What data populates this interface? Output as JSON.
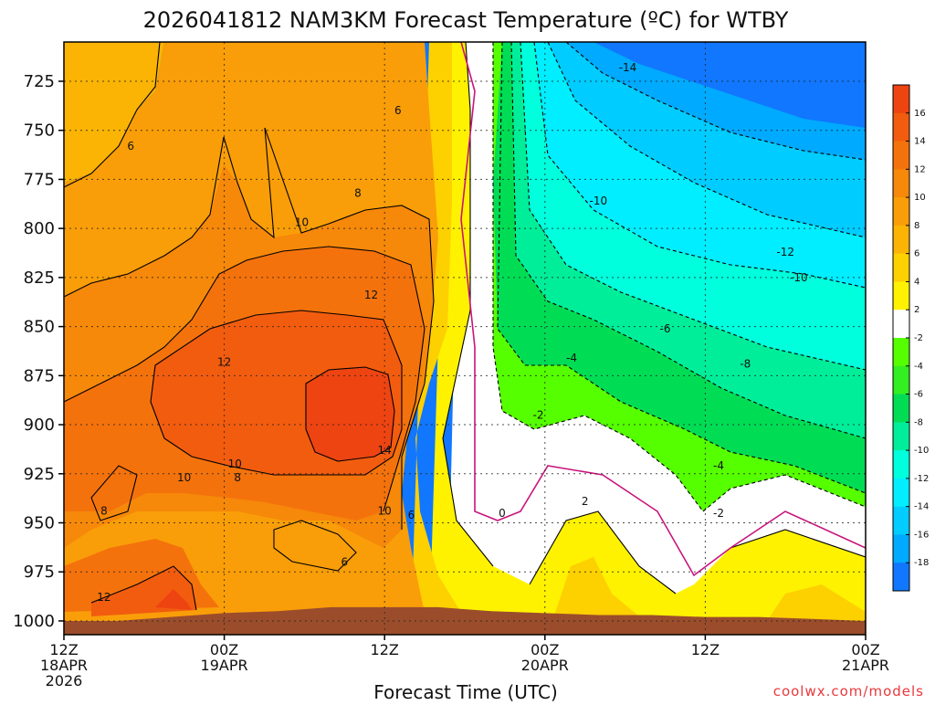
{
  "chart_data": {
    "type": "heatmap",
    "title": "2026041812 NAM3KM Forecast Temperature (ºC) for WTBY",
    "xlabel": "Forecast Time (UTC)",
    "ylabel": "",
    "credit": "coolwx.com/models",
    "x_ticks": [
      {
        "line1": "12Z",
        "line2": "18APR",
        "line3": "2026",
        "hours": 0
      },
      {
        "line1": "00Z",
        "line2": "19APR",
        "line3": "",
        "hours": 12
      },
      {
        "line1": "12Z",
        "line2": "",
        "line3": "",
        "hours": 24
      },
      {
        "line1": "00Z",
        "line2": "20APR",
        "line3": "",
        "hours": 36
      },
      {
        "line1": "12Z",
        "line2": "",
        "line3": "",
        "hours": 48
      },
      {
        "line1": "00Z",
        "line2": "21APR",
        "line3": "",
        "hours": 60
      }
    ],
    "xlim": [
      0,
      60
    ],
    "y_ticks": [
      725,
      750,
      775,
      800,
      825,
      850,
      875,
      900,
      925,
      950,
      975,
      1000
    ],
    "ylim": [
      705,
      1007
    ],
    "colorbar": {
      "labels": [
        "16",
        "14",
        "12",
        "10",
        "8",
        "6",
        "4",
        "2",
        "-2",
        "-4",
        "-6",
        "-8",
        "-10",
        "-12",
        "-14",
        "-16",
        "-18"
      ],
      "colors": [
        "#ee4411",
        "#f25c0f",
        "#f4720c",
        "#f6880a",
        "#f99e08",
        "#fbb404",
        "#fdd000",
        "#fff200",
        "#ffffff",
        "#55ff00",
        "#33ee22",
        "#00dd55",
        "#00ee99",
        "#00ffdd",
        "#00eeff",
        "#00ccff",
        "#00aaff",
        "#1177ff"
      ]
    },
    "contour_labels": [
      {
        "text": "-14",
        "hours": 42.2,
        "hpa": 718
      },
      {
        "text": "6",
        "hours": 5.0,
        "hpa": 758
      },
      {
        "text": "6",
        "hours": 25.0,
        "hpa": 740
      },
      {
        "text": "8",
        "hours": 22.0,
        "hpa": 782
      },
      {
        "text": "10",
        "hours": 17.8,
        "hpa": 797
      },
      {
        "text": "-10",
        "hours": 40.0,
        "hpa": 786
      },
      {
        "text": "-12",
        "hours": 54.0,
        "hpa": 812
      },
      {
        "text": "-10",
        "hours": 55.0,
        "hpa": 825
      },
      {
        "text": "12",
        "hours": 23.0,
        "hpa": 834
      },
      {
        "text": "-6",
        "hours": 45.0,
        "hpa": 851
      },
      {
        "text": "-4",
        "hours": 38.0,
        "hpa": 866
      },
      {
        "text": "-8",
        "hours": 51.0,
        "hpa": 869
      },
      {
        "text": "12",
        "hours": 12.0,
        "hpa": 868
      },
      {
        "text": "-2",
        "hours": 35.5,
        "hpa": 895
      },
      {
        "text": "14",
        "hours": 24.0,
        "hpa": 913
      },
      {
        "text": "10",
        "hours": 12.8,
        "hpa": 920
      },
      {
        "text": "8",
        "hours": 13.0,
        "hpa": 927
      },
      {
        "text": "10",
        "hours": 9.0,
        "hpa": 927
      },
      {
        "text": "-4",
        "hours": 49.0,
        "hpa": 921
      },
      {
        "text": "2",
        "hours": 39.0,
        "hpa": 939
      },
      {
        "text": "8",
        "hours": 3.0,
        "hpa": 944
      },
      {
        "text": "10",
        "hours": 24.0,
        "hpa": 944
      },
      {
        "text": "6",
        "hours": 26.0,
        "hpa": 946
      },
      {
        "text": "0",
        "hours": 32.8,
        "hpa": 945
      },
      {
        "text": "-2",
        "hours": 49.0,
        "hpa": 945
      },
      {
        "text": "6",
        "hours": 21.0,
        "hpa": 970
      },
      {
        "text": "12",
        "hours": 3.0,
        "hpa": 988
      }
    ],
    "surface_pressure": [
      {
        "hours": 0,
        "hpa": 1000
      },
      {
        "hours": 4,
        "hpa": 1000
      },
      {
        "hours": 8,
        "hpa": 998
      },
      {
        "hours": 12,
        "hpa": 996
      },
      {
        "hours": 16,
        "hpa": 995
      },
      {
        "hours": 20,
        "hpa": 993
      },
      {
        "hours": 24,
        "hpa": 993
      },
      {
        "hours": 28,
        "hpa": 993
      },
      {
        "hours": 32,
        "hpa": 995
      },
      {
        "hours": 36,
        "hpa": 996
      },
      {
        "hours": 40,
        "hpa": 997
      },
      {
        "hours": 44,
        "hpa": 997
      },
      {
        "hours": 48,
        "hpa": 998
      },
      {
        "hours": 52,
        "hpa": 998
      },
      {
        "hours": 56,
        "hpa": 999
      },
      {
        "hours": 60,
        "hpa": 1000
      }
    ]
  },
  "colors": {
    "ground": "#9b4d2b",
    "freezing_line": "#c8137c",
    "contour": "#000000"
  }
}
